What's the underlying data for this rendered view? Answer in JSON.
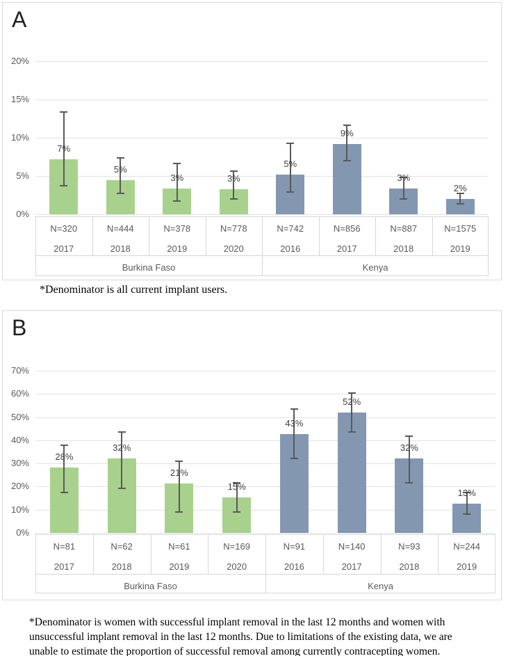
{
  "chart_data": [
    {
      "panel": "A",
      "type": "bar",
      "title": "",
      "xlabel": "",
      "ylabel": "",
      "ylim": [
        0,
        20
      ],
      "yticks": [
        0,
        5,
        10,
        15,
        20
      ],
      "ytick_suffix": "%",
      "grid": true,
      "error_bar_color": "#595959",
      "series_colors": {
        "Burkina Faso": "#a9d18e",
        "Kenya": "#8497b0"
      },
      "categories": [
        {
          "group": "Burkina Faso",
          "n": "N=320",
          "year": "2017",
          "value_pct": 7.2,
          "label": "7%",
          "ci_pct": [
            3.7,
            13.4
          ]
        },
        {
          "group": "Burkina Faso",
          "n": "N=444",
          "year": "2018",
          "value_pct": 4.5,
          "label": "5%",
          "ci_pct": [
            2.7,
            7.4
          ]
        },
        {
          "group": "Burkina Faso",
          "n": "N=378",
          "year": "2019",
          "value_pct": 3.4,
          "label": "3%",
          "ci_pct": [
            1.7,
            6.6
          ]
        },
        {
          "group": "Burkina Faso",
          "n": "N=778",
          "year": "2020",
          "value_pct": 3.3,
          "label": "3%",
          "ci_pct": [
            2.0,
            5.6
          ]
        },
        {
          "group": "Kenya",
          "n": "N=742",
          "year": "2016",
          "value_pct": 5.2,
          "label": "5%",
          "ci_pct": [
            2.9,
            9.3
          ]
        },
        {
          "group": "Kenya",
          "n": "N=856",
          "year": "2017",
          "value_pct": 9.2,
          "label": "9%",
          "ci_pct": [
            7.0,
            11.6
          ]
        },
        {
          "group": "Kenya",
          "n": "N=887",
          "year": "2018",
          "value_pct": 3.4,
          "label": "3%",
          "ci_pct": [
            2.0,
            4.8
          ]
        },
        {
          "group": "Kenya",
          "n": "N=1575",
          "year": "2019",
          "value_pct": 2.0,
          "label": "2%",
          "ci_pct": [
            1.4,
            2.7
          ]
        }
      ],
      "footnote_lines": [
        "*Denominator is all current implant users."
      ]
    },
    {
      "panel": "B",
      "type": "bar",
      "title": "",
      "xlabel": "",
      "ylabel": "",
      "ylim": [
        0,
        70
      ],
      "yticks": [
        0,
        10,
        20,
        30,
        40,
        50,
        60,
        70
      ],
      "ytick_suffix": "%",
      "grid": true,
      "error_bar_color": "#595959",
      "series_colors": {
        "Burkina Faso": "#a9d18e",
        "Kenya": "#8497b0"
      },
      "categories": [
        {
          "group": "Burkina Faso",
          "n": "N=81",
          "year": "2017",
          "value_pct": 28.3,
          "label": "28%",
          "ci_pct": [
            17.3,
            37.9
          ]
        },
        {
          "group": "Burkina Faso",
          "n": "N=62",
          "year": "2018",
          "value_pct": 32.2,
          "label": "32%",
          "ci_pct": [
            19.3,
            43.5
          ]
        },
        {
          "group": "Burkina Faso",
          "n": "N=61",
          "year": "2019",
          "value_pct": 21.2,
          "label": "21%",
          "ci_pct": [
            9.0,
            30.8
          ]
        },
        {
          "group": "Burkina Faso",
          "n": "N=169",
          "year": "2020",
          "value_pct": 15.3,
          "label": "15%",
          "ci_pct": [
            9.0,
            21.5
          ]
        },
        {
          "group": "Kenya",
          "n": "N=91",
          "year": "2016",
          "value_pct": 42.8,
          "label": "43%",
          "ci_pct": [
            32.2,
            53.4
          ]
        },
        {
          "group": "Kenya",
          "n": "N=140",
          "year": "2017",
          "value_pct": 52.1,
          "label": "52%",
          "ci_pct": [
            43.6,
            60.4
          ]
        },
        {
          "group": "Kenya",
          "n": "N=93",
          "year": "2018",
          "value_pct": 32.2,
          "label": "32%",
          "ci_pct": [
            21.7,
            41.9
          ]
        },
        {
          "group": "Kenya",
          "n": "N=244",
          "year": "2019",
          "value_pct": 12.7,
          "label": "13%",
          "ci_pct": [
            8.0,
            17.4
          ]
        }
      ],
      "footnote_lines": [
        "*Denominator is women with successful implant removal in the last 12 months and women with",
        "unsuccessful implant removal in the last 12 months. Due to limitations of the existing data, we are",
        "unable to estimate the proportion of successful removal among currently contracepting women."
      ]
    }
  ],
  "ui_colors": {
    "panel_border": "#d9d9d9",
    "gridline": "#e2e2e2",
    "axis_text": "#595959",
    "value_label_text": "#3f3f3f",
    "table_border": "#d6d6d6"
  }
}
